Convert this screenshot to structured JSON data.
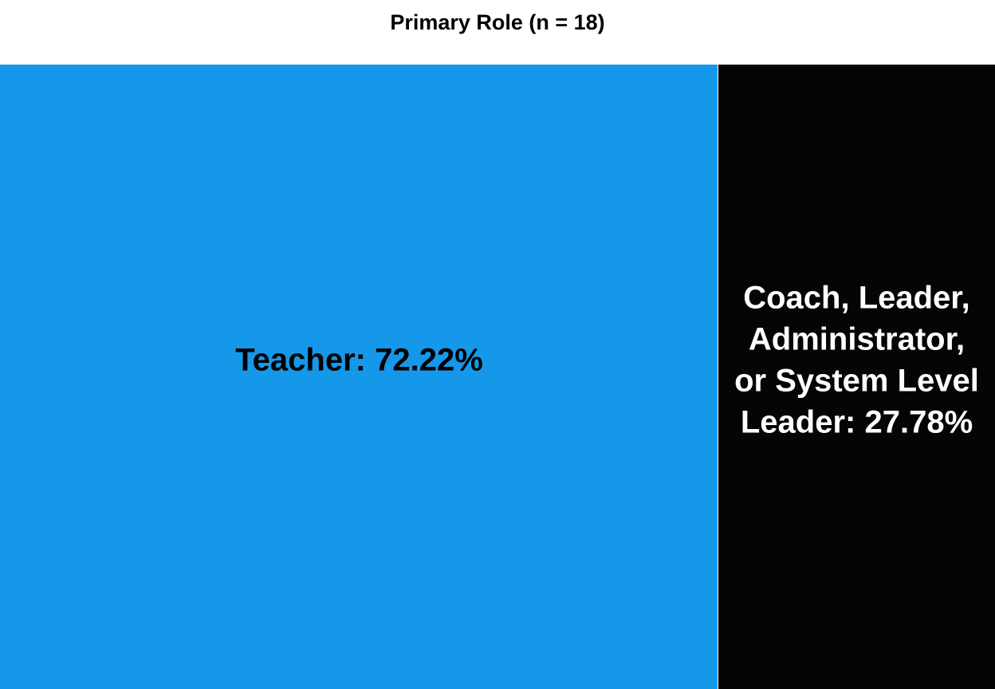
{
  "chart_data": {
    "type": "treemap",
    "title": "Primary Role (n = 18)",
    "total_n": 18,
    "items": [
      {
        "name": "Teacher",
        "value": 72.22,
        "label": "Teacher: 72.22%",
        "color": "#1598EA",
        "text_color": "#000000",
        "label_lines": [
          "Teacher: 72.22%"
        ]
      },
      {
        "name": "Coach, Leader, Administrator, or System Level Leader",
        "value": 27.78,
        "label": "Coach, Leader, Administrator, or System Level Leader: 27.78%",
        "color": "#050505",
        "text_color": "#FFFFFF",
        "label_lines": [
          "Coach, Leader,",
          "Administrator,",
          "or System Level",
          "Leader: 27.78%"
        ]
      }
    ]
  }
}
